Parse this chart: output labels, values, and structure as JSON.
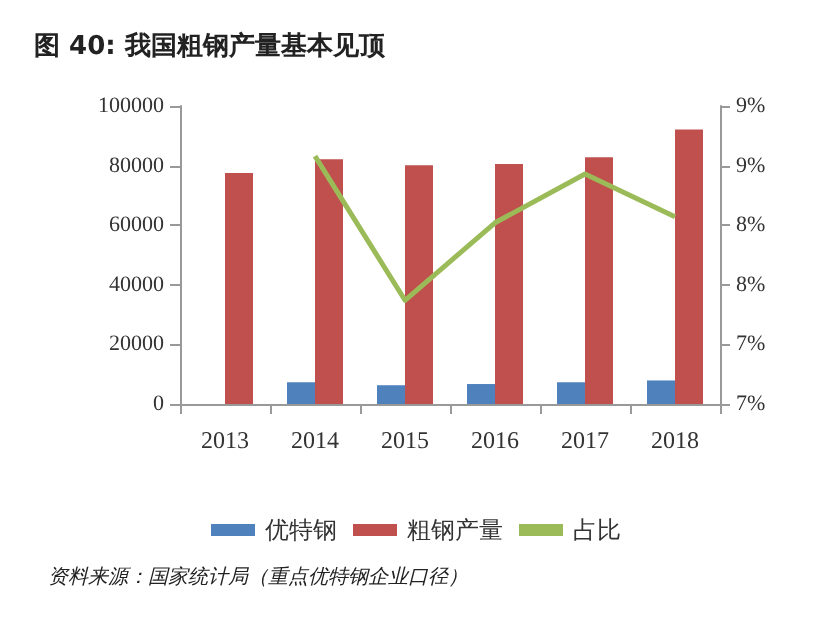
{
  "chart_data": {
    "type": "bar",
    "title": "图 40: 我国粗钢产量基本见顶",
    "annotations": [
      "资料来源：国家统计局（重点优特钢企业口径）"
    ],
    "categories": [
      "2013",
      "2014",
      "2015",
      "2016",
      "2017",
      "2018"
    ],
    "series": [
      {
        "name": "优特钢",
        "color": "#4f81bd",
        "values": [
          null,
          7300,
          6300,
          6700,
          7300,
          7900
        ]
      },
      {
        "name": "粗钢产量",
        "color": "#c0504d",
        "values": [
          77500,
          82100,
          80100,
          80500,
          82800,
          92100
        ]
      },
      {
        "name": "占比",
        "type": "line",
        "axis": "y2",
        "color": "#9bbb59",
        "values": [
          null,
          9.08,
          7.87,
          8.52,
          8.93,
          8.57
        ]
      }
    ],
    "ylim": [
      0,
      100000
    ],
    "yticks": [
      0,
      20000,
      40000,
      60000,
      80000,
      100000
    ],
    "y2lim": [
      7,
      9.5
    ],
    "y2ticks": [
      {
        "value": 7,
        "label": "7%"
      },
      {
        "value": 7.5,
        "label": "7%"
      },
      {
        "value": 8,
        "label": "8%"
      },
      {
        "value": 8.5,
        "label": "8%"
      },
      {
        "value": 9,
        "label": "9%"
      },
      {
        "value": 9.5,
        "label": "9%"
      }
    ],
    "grid": false,
    "legend": "bottom",
    "marker": "none"
  }
}
